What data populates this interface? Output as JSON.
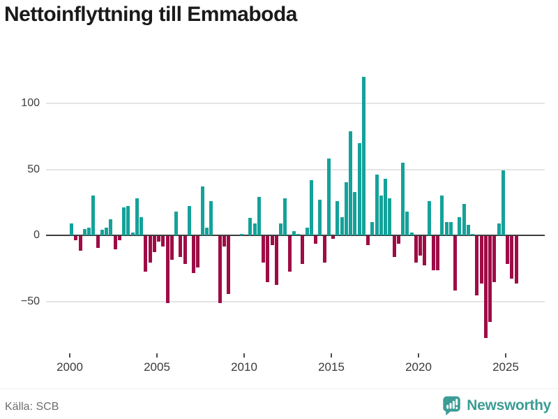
{
  "title": "Nettoinflyttning till Emmaboda",
  "source": "Källa: SCB",
  "brand": {
    "name": "Newsworthy",
    "icon": "newsworthy-bar-chart-bubble-icon",
    "color": "#3b9d95"
  },
  "colors": {
    "positive_bar": "#14a29a",
    "negative_bar": "#9e0c46",
    "zero_line": "#3d3d3d",
    "gridline": "#e4e4e4",
    "title_text": "#1a1a1a",
    "axis_text": "#3d3d3d",
    "source_text": "#6e6e6e",
    "background": "#ffffff"
  },
  "chart_data": {
    "type": "bar",
    "title": "Nettoinflyttning till Emmaboda",
    "xlabel": "",
    "ylabel": "",
    "frequency": "quarterly",
    "start_period": "2000-Q1",
    "end_period": "2025-Q3",
    "grid": "horizontal",
    "legend": "none",
    "ylim": [
      -90,
      130
    ],
    "yticks": [
      {
        "label": "100",
        "value": 100
      },
      {
        "label": "50",
        "value": 50
      },
      {
        "label": "0",
        "value": 0
      },
      {
        "label": "−50",
        "value": -50
      }
    ],
    "x_tick_labels": [
      "2000",
      "2005",
      "2010",
      "2015",
      "2020",
      "2025"
    ],
    "series": [
      {
        "name": "Nettoinflyttning",
        "values": [
          9,
          -3,
          -11,
          5,
          6,
          30,
          -9,
          4,
          6,
          12,
          -10,
          -3,
          21,
          22,
          2,
          28,
          14,
          -27,
          -20,
          -12,
          -4,
          -8,
          -51,
          -18,
          18,
          -16,
          -21,
          22,
          -28,
          -24,
          37,
          6,
          26,
          0,
          -51,
          -8,
          -44,
          0,
          0,
          1,
          0,
          13,
          9,
          29,
          -20,
          -35,
          -7,
          -37,
          9,
          28,
          -27,
          3,
          1,
          -21,
          6,
          42,
          -6,
          27,
          -20,
          58,
          -2,
          26,
          14,
          40,
          79,
          33,
          70,
          120,
          -7,
          10,
          46,
          30,
          43,
          28,
          -16,
          -6,
          55,
          18,
          2,
          -20,
          -15,
          -22,
          26,
          -26,
          -26,
          30,
          10,
          10,
          -41,
          14,
          24,
          8,
          1,
          -45,
          -36,
          -77,
          -65,
          -35,
          9,
          49,
          -21,
          -32,
          -36
        ]
      }
    ]
  }
}
